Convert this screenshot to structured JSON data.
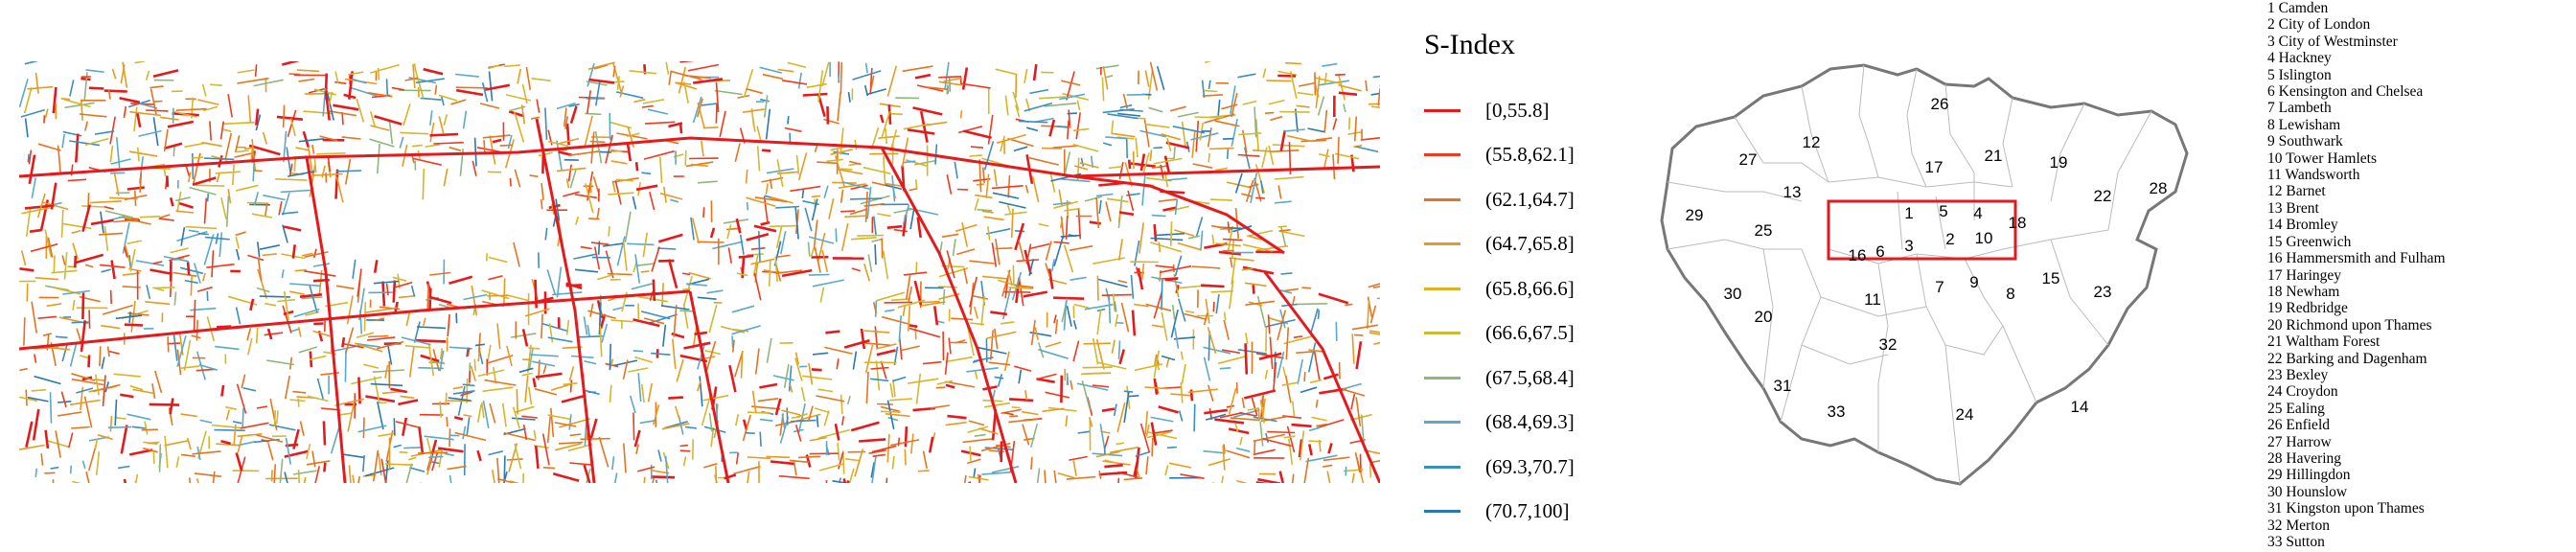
{
  "legend": {
    "title": "S-Index",
    "classes": [
      {
        "label": "[0,55.8]",
        "color": "#e41a1c"
      },
      {
        "label": "(55.8,62.1]",
        "color": "#f03a1e"
      },
      {
        "label": "(62.1,64.7]",
        "color": "#e8731e"
      },
      {
        "label": "(64.7,65.8]",
        "color": "#e89a20"
      },
      {
        "label": "(65.8,66.6]",
        "color": "#dcb322"
      },
      {
        "label": "(66.6,67.5]",
        "color": "#cfb936"
      },
      {
        "label": "(67.5,68.4]",
        "color": "#8fb77a"
      },
      {
        "label": "(68.4,69.3]",
        "color": "#5ba9c9"
      },
      {
        "label": "(69.3,70.7]",
        "color": "#3b8fc0"
      },
      {
        "label": "(70.7,100]",
        "color": "#2a78b0"
      }
    ]
  },
  "borough_map": {
    "labels": [
      "1",
      "2",
      "3",
      "4",
      "5",
      "6",
      "7",
      "8",
      "9",
      "10",
      "11",
      "12",
      "13",
      "14",
      "15",
      "16",
      "17",
      "18",
      "19",
      "20",
      "21",
      "22",
      "23",
      "24",
      "25",
      "26",
      "27",
      "28",
      "29",
      "30",
      "31",
      "32",
      "33"
    ],
    "highlight_color": "#e41a1c"
  },
  "borough_list": [
    "1 Camden",
    "2 City of London",
    "3 City of Westminster",
    "4 Hackney",
    "5 Islington",
    "6 Kensington and Chelsea",
    "7 Lambeth",
    "8 Lewisham",
    "9 Southwark",
    "10 Tower Hamlets",
    "11 Wandsworth",
    "12 Barnet",
    "13 Brent",
    "14 Bromley",
    "15 Greenwich",
    "16 Hammersmith and Fulham",
    "17 Haringey",
    "18 Newham",
    "19 Redbridge",
    "20 Richmond upon Thames",
    "21 Waltham Forest",
    "22 Barking and Dagenham",
    "23 Bexley",
    "24 Croydon",
    "25 Ealing",
    "26 Enfield",
    "27 Harrow",
    "28 Havering",
    "29 Hillingdon",
    "30 Hounslow",
    "31 Kingston upon Thames",
    "32 Merton",
    "33 Sutton"
  ]
}
